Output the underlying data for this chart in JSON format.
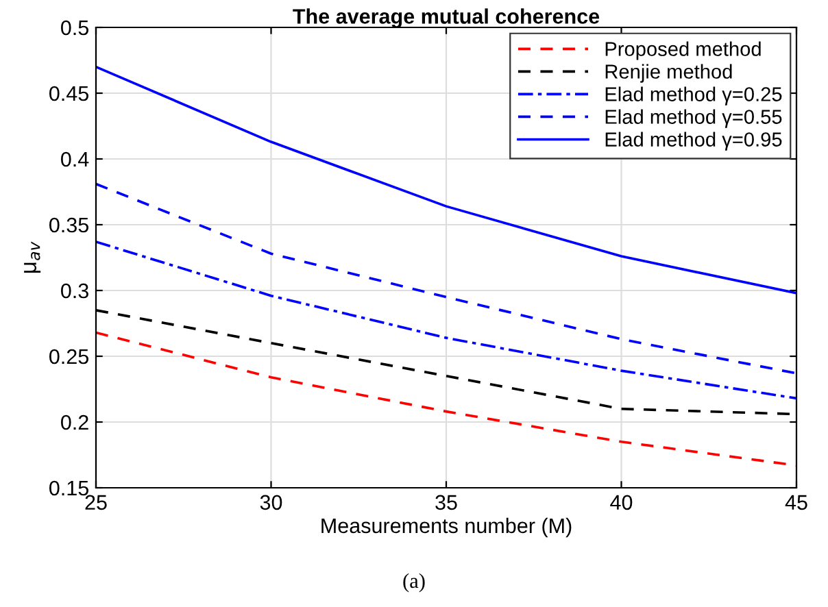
{
  "chart_data": {
    "type": "line",
    "title": "The average mutual coherence",
    "xlabel": "Measurements number (M)",
    "ylabel": "μ$_{av}$",
    "x": [
      25,
      30,
      35,
      40,
      45
    ],
    "series": [
      {
        "name": "Proposed method",
        "color": "#ff0000",
        "line_style": "dashed",
        "values": [
          0.268,
          0.234,
          0.208,
          0.185,
          0.167
        ]
      },
      {
        "name": "Renjie method",
        "color": "#000000",
        "line_style": "dashed",
        "values": [
          0.285,
          0.26,
          0.235,
          0.21,
          0.206
        ]
      },
      {
        "name": "Elad method γ=0.25",
        "color": "#0000ff",
        "line_style": "dashdot",
        "values": [
          0.337,
          0.296,
          0.264,
          0.239,
          0.218
        ]
      },
      {
        "name": "Elad method γ=0.55",
        "color": "#0000ff",
        "line_style": "dashed",
        "values": [
          0.381,
          0.328,
          0.295,
          0.263,
          0.237
        ]
      },
      {
        "name": "Elad method γ=0.95",
        "color": "#0000ff",
        "line_style": "solid",
        "values": [
          0.47,
          0.413,
          0.364,
          0.326,
          0.298
        ]
      }
    ],
    "xlim": [
      25,
      45
    ],
    "xticks": [
      25,
      30,
      35,
      40,
      45
    ],
    "ylim": [
      0.15,
      0.5
    ],
    "yticks": [
      0.15,
      0.2,
      0.25,
      0.3,
      0.35,
      0.4,
      0.45,
      0.5
    ],
    "grid": true,
    "legend": "top right",
    "marker": "none",
    "annotations": [
      "(a)"
    ]
  }
}
